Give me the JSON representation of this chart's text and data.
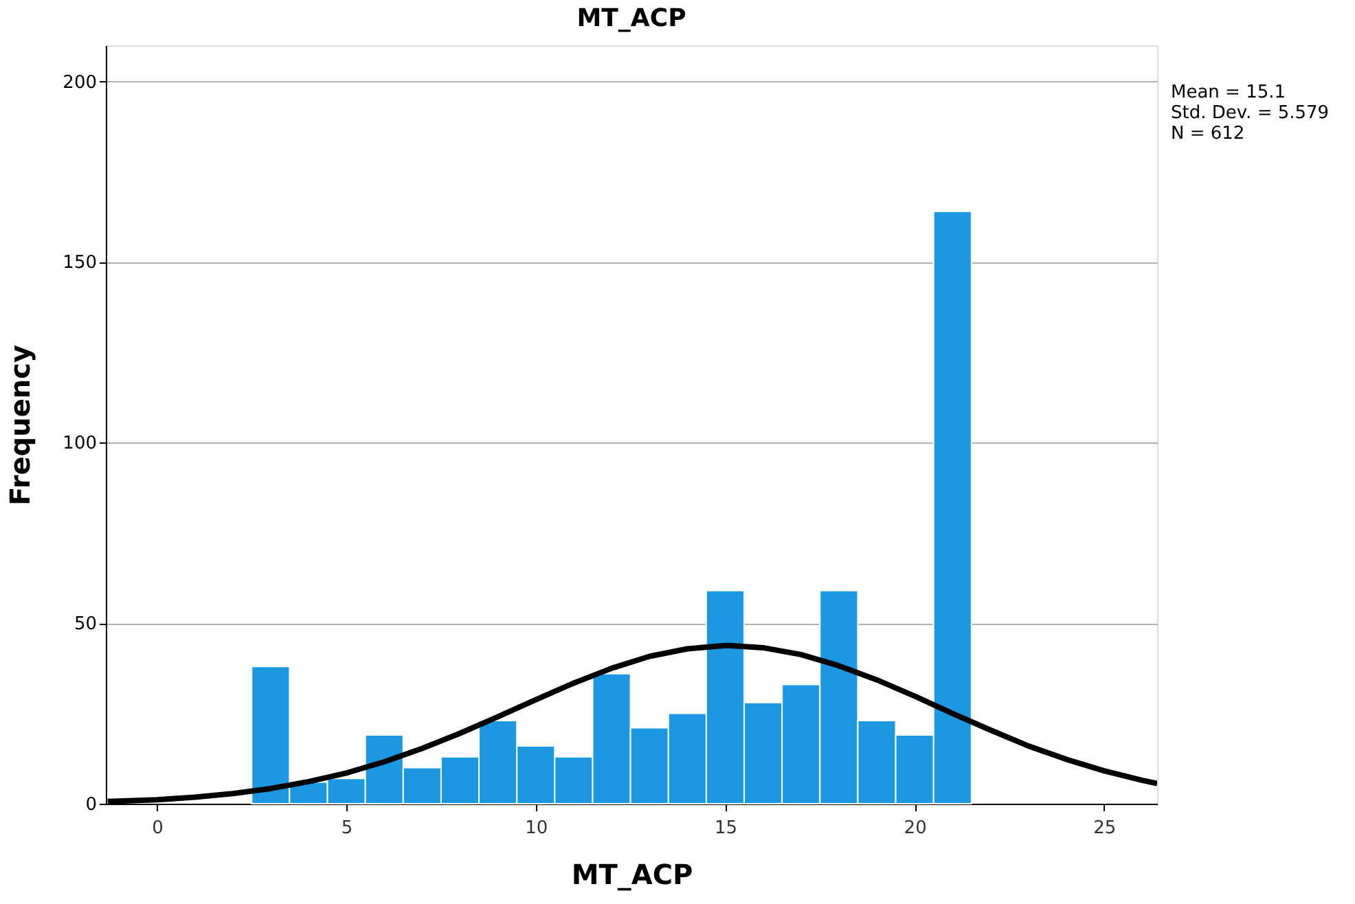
{
  "chart_data": {
    "type": "histogram",
    "title": "MT_ACP",
    "xlabel": "MT_ACP",
    "ylabel": "Frequency",
    "bins": [
      2.5,
      3.5,
      4.5,
      5.5,
      6.5,
      7.5,
      8.5,
      9.5,
      10.5,
      11.5,
      12.5,
      13.5,
      14.5,
      15.5,
      16.5,
      17.5,
      18.5,
      19.5,
      20.5,
      21.5
    ],
    "values": [
      38,
      6,
      7,
      19,
      10,
      13,
      23,
      16,
      13,
      36,
      21,
      25,
      59,
      28,
      33,
      59,
      23,
      19,
      164
    ],
    "color": "#1c98e3",
    "series": [
      {
        "type": "line",
        "color": "#000000",
        "x": [
          -1.3,
          0,
          1,
          2,
          3,
          4,
          5,
          6,
          7,
          8,
          9,
          10,
          11,
          12,
          13,
          14,
          15,
          15.1,
          16,
          17,
          18,
          19,
          20,
          21,
          22,
          23,
          24,
          25,
          26,
          26.4
        ],
        "values": [
          0.6,
          1.1,
          1.8,
          2.8,
          4.2,
          6.1,
          8.5,
          11.6,
          15.3,
          19.5,
          24.1,
          28.8,
          33.4,
          37.5,
          40.8,
          42.9,
          43.8,
          43.8,
          43.2,
          41.3,
          38.2,
          34.3,
          29.8,
          25.0,
          20.4,
          16.0,
          12.3,
          9.1,
          6.5,
          5.6
        ]
      }
    ],
    "xlim": [
      -1.35,
      26.4
    ],
    "xticks": [
      0,
      5,
      10,
      15,
      20,
      25
    ],
    "ylim": [
      0,
      210
    ],
    "yticks": [
      0,
      50,
      100,
      150,
      200
    ],
    "grid": "y",
    "annotations": [
      "Mean = 15.1",
      "Std. Dev. = 5.579",
      "N = 612"
    ]
  }
}
